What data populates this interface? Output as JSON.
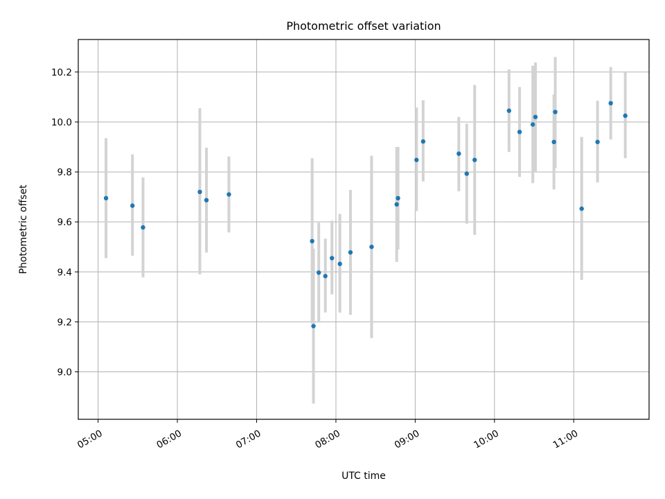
{
  "chart_data": {
    "type": "scatter",
    "title": "Photometric offset variation",
    "xlabel": "UTC time",
    "ylabel": "Photometric offset",
    "x_ticks": [
      "05:00",
      "06:00",
      "07:00",
      "08:00",
      "09:00",
      "10:00",
      "11:00"
    ],
    "y_ticks": [
      "9.0",
      "9.2",
      "9.4",
      "9.6",
      "9.8",
      "10.0",
      "10.2"
    ],
    "xlim": [
      "04:45",
      "11:57"
    ],
    "ylim": [
      8.81,
      10.33
    ],
    "grid": true,
    "marker_color": "#1f77b4",
    "errorbar_color": "#d3d3d3",
    "points": [
      {
        "x": "05:06",
        "y": 9.695,
        "ylo": 9.455,
        "yhi": 9.935
      },
      {
        "x": "05:26",
        "y": 9.665,
        "ylo": 9.465,
        "yhi": 9.87
      },
      {
        "x": "05:34",
        "y": 9.578,
        "ylo": 9.378,
        "yhi": 9.778
      },
      {
        "x": "06:17",
        "y": 9.72,
        "ylo": 9.39,
        "yhi": 10.055
      },
      {
        "x": "06:22",
        "y": 9.687,
        "ylo": 9.477,
        "yhi": 9.897
      },
      {
        "x": "06:39",
        "y": 9.71,
        "ylo": 9.558,
        "yhi": 9.862
      },
      {
        "x": "07:42",
        "y": 9.523,
        "ylo": 9.193,
        "yhi": 9.855
      },
      {
        "x": "07:43",
        "y": 9.183,
        "ylo": 8.873,
        "yhi": 9.493
      },
      {
        "x": "07:47",
        "y": 9.397,
        "ylo": 9.197,
        "yhi": 9.597
      },
      {
        "x": "07:52",
        "y": 9.383,
        "ylo": 9.238,
        "yhi": 9.533
      },
      {
        "x": "07:57",
        "y": 9.455,
        "ylo": 9.31,
        "yhi": 9.605
      },
      {
        "x": "08:03",
        "y": 9.432,
        "ylo": 9.237,
        "yhi": 9.632
      },
      {
        "x": "08:11",
        "y": 9.478,
        "ylo": 9.228,
        "yhi": 9.728
      },
      {
        "x": "08:27",
        "y": 9.5,
        "ylo": 9.135,
        "yhi": 9.865
      },
      {
        "x": "08:46",
        "y": 9.67,
        "ylo": 9.44,
        "yhi": 9.9
      },
      {
        "x": "08:47",
        "y": 9.695,
        "ylo": 9.49,
        "yhi": 9.9
      },
      {
        "x": "09:01",
        "y": 9.848,
        "ylo": 9.643,
        "yhi": 10.058
      },
      {
        "x": "09:06",
        "y": 9.922,
        "ylo": 9.762,
        "yhi": 10.087
      },
      {
        "x": "09:33",
        "y": 9.873,
        "ylo": 9.723,
        "yhi": 10.02
      },
      {
        "x": "09:39",
        "y": 9.793,
        "ylo": 9.593,
        "yhi": 9.993
      },
      {
        "x": "09:45",
        "y": 9.848,
        "ylo": 9.548,
        "yhi": 10.148
      },
      {
        "x": "10:11",
        "y": 10.045,
        "ylo": 9.88,
        "yhi": 10.21
      },
      {
        "x": "10:19",
        "y": 9.96,
        "ylo": 9.78,
        "yhi": 10.14
      },
      {
        "x": "10:29",
        "y": 9.99,
        "ylo": 9.755,
        "yhi": 10.225
      },
      {
        "x": "10:31",
        "y": 10.02,
        "ylo": 9.8,
        "yhi": 10.238
      },
      {
        "x": "10:45",
        "y": 9.92,
        "ylo": 9.73,
        "yhi": 10.11
      },
      {
        "x": "10:46",
        "y": 10.04,
        "ylo": 9.815,
        "yhi": 10.26
      },
      {
        "x": "11:06",
        "y": 9.653,
        "ylo": 9.368,
        "yhi": 9.94
      },
      {
        "x": "11:18",
        "y": 9.92,
        "ylo": 9.758,
        "yhi": 10.085
      },
      {
        "x": "11:28",
        "y": 10.075,
        "ylo": 9.93,
        "yhi": 10.22
      },
      {
        "x": "11:39",
        "y": 10.025,
        "ylo": 9.855,
        "yhi": 10.2
      }
    ]
  }
}
